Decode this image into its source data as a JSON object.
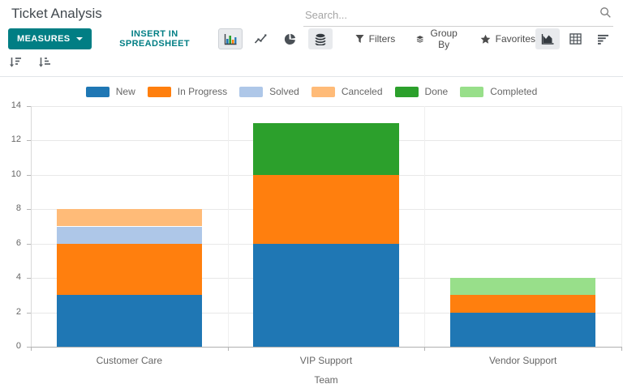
{
  "header": {
    "title": "Ticket Analysis",
    "search": {
      "placeholder": "Search..."
    }
  },
  "toolbar": {
    "measures_label": "MEASURES",
    "insert_label": "INSERT IN SPREADSHEET",
    "filters_label": "Filters",
    "group_by_label": "Group By",
    "favorites_label": "Favorites",
    "chart_types": [
      "bar",
      "line",
      "pie",
      "stacked"
    ],
    "active_chart_type": "bar",
    "stacked_enabled": true,
    "view_switcher": [
      "graph",
      "pivot",
      "list"
    ],
    "active_view": "graph"
  },
  "colors": {
    "accent": "#017e84",
    "grid": "#e8e8e8",
    "axis": "#b0b0b0"
  },
  "chart_data": {
    "type": "bar",
    "stacked": true,
    "title": "",
    "xlabel": "Team",
    "ylabel": "",
    "ylim": [
      0,
      14
    ],
    "ytick_step": 2,
    "grid": true,
    "legend_position": "top",
    "categories": [
      "Customer Care",
      "VIP Support",
      "Vendor Support"
    ],
    "series": [
      {
        "name": "New",
        "color": "#1f77b4",
        "values": [
          3,
          6,
          2
        ]
      },
      {
        "name": "In Progress",
        "color": "#ff7f0e",
        "values": [
          3,
          4,
          1
        ]
      },
      {
        "name": "Solved",
        "color": "#aec7e8",
        "values": [
          1,
          0,
          0
        ]
      },
      {
        "name": "Canceled",
        "color": "#ffbb78",
        "values": [
          1,
          0,
          0
        ]
      },
      {
        "name": "Done",
        "color": "#2ca02c",
        "values": [
          0,
          3,
          0
        ]
      },
      {
        "name": "Completed",
        "color": "#98df8a",
        "values": [
          0,
          0,
          1
        ]
      }
    ]
  }
}
